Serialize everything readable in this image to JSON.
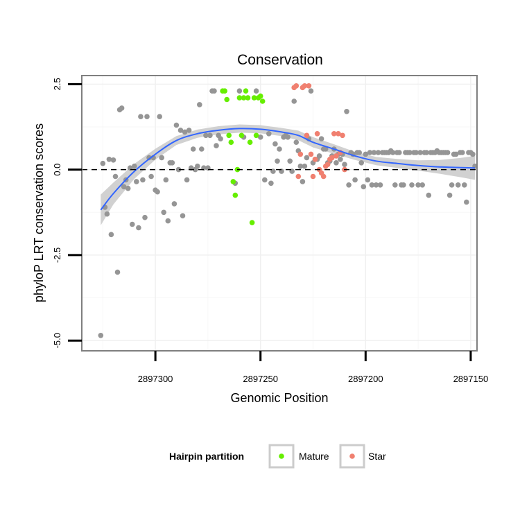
{
  "chart_data": {
    "type": "scatter",
    "title": "Conservation",
    "xlabel": "Genomic Position",
    "ylabel": "phyloP LRT conservation scores",
    "x_reversed": true,
    "xlim": [
      2897335,
      2897147
    ],
    "ylim": [
      -5.3,
      2.75
    ],
    "x_ticks": [
      2897300,
      2897250,
      2897200,
      2897150
    ],
    "x_tick_labels": [
      "2897300",
      "2897250",
      "2897200",
      "2897150"
    ],
    "y_ticks": [
      -5.0,
      -2.5,
      0.0,
      2.5
    ],
    "y_tick_labels": [
      "-5.0",
      "-2.5",
      "0.0",
      "2.5"
    ],
    "reference_line": {
      "y": 0,
      "style": "dashed"
    },
    "legend": {
      "title": "Hairpin partition",
      "position": "bottom",
      "entries": [
        {
          "label": "Mature",
          "color": "#66ee00"
        },
        {
          "label": "Star",
          "color": "#f08070"
        }
      ]
    },
    "colors": {
      "other": "#959595",
      "mature": "#66ee00",
      "star": "#f08070",
      "smooth_line": "#3366ff",
      "ribbon": "#cccccc"
    },
    "series": [
      {
        "name": "Other",
        "points": [
          [
            2897326,
            -4.85
          ],
          [
            2897325,
            0.18
          ],
          [
            2897324,
            -1.1
          ],
          [
            2897323,
            -1.3
          ],
          [
            2897322,
            0.3
          ],
          [
            2897321,
            -1.9
          ],
          [
            2897320,
            0.28
          ],
          [
            2897319,
            -0.2
          ],
          [
            2897318,
            -3.0
          ],
          [
            2897317,
            1.75
          ],
          [
            2897316,
            1.8
          ],
          [
            2897315,
            -0.5
          ],
          [
            2897314,
            -0.3
          ],
          [
            2897313,
            -0.55
          ],
          [
            2897312,
            0.05
          ],
          [
            2897311,
            -1.6
          ],
          [
            2897310,
            0.1
          ],
          [
            2897309,
            -0.35
          ],
          [
            2897308,
            -1.7
          ],
          [
            2897307,
            1.55
          ],
          [
            2897306,
            -0.3
          ],
          [
            2897305,
            -1.4
          ],
          [
            2897304,
            1.55
          ],
          [
            2897303,
            0.35
          ],
          [
            2897302,
            -0.2
          ],
          [
            2897301,
            0.35
          ],
          [
            2897300,
            -0.6
          ],
          [
            2897299,
            -0.65
          ],
          [
            2897298,
            1.55
          ],
          [
            2897297,
            0.35
          ],
          [
            2897296,
            -1.25
          ],
          [
            2897295,
            -0.3
          ],
          [
            2897294,
            -1.5
          ],
          [
            2897293,
            0.2
          ],
          [
            2897292,
            0.2
          ],
          [
            2897291,
            -1.0
          ],
          [
            2897290,
            1.3
          ],
          [
            2897289,
            0.0
          ],
          [
            2897288,
            1.15
          ],
          [
            2897287,
            -1.35
          ],
          [
            2897286,
            1.1
          ],
          [
            2897285,
            -0.3
          ],
          [
            2897284,
            1.15
          ],
          [
            2897283,
            0.05
          ],
          [
            2897282,
            0.6
          ],
          [
            2897281,
            0.0
          ],
          [
            2897280,
            0.1
          ],
          [
            2897279,
            1.9
          ],
          [
            2897278,
            0.6
          ],
          [
            2897277,
            0.05
          ],
          [
            2897276,
            1.0
          ],
          [
            2897275,
            0.05
          ],
          [
            2897274,
            1.0
          ],
          [
            2897273,
            2.3
          ],
          [
            2897272,
            2.3
          ],
          [
            2897271,
            0.7
          ],
          [
            2897270,
            1.0
          ],
          [
            2897269,
            0.9
          ],
          [
            2897262,
            -0.4
          ],
          [
            2897260,
            2.3
          ],
          [
            2897258,
            0.95
          ],
          [
            2897252,
            2.3
          ],
          [
            2897250,
            0.95
          ],
          [
            2897248,
            -0.3
          ],
          [
            2897246,
            1.05
          ],
          [
            2897245,
            -0.4
          ],
          [
            2897244,
            -0.05
          ],
          [
            2897243,
            0.75
          ],
          [
            2897242,
            0.25
          ],
          [
            2897241,
            0.6
          ],
          [
            2897240,
            -0.05
          ],
          [
            2897239,
            0.95
          ],
          [
            2897238,
            1.0
          ],
          [
            2897237,
            0.95
          ],
          [
            2897236,
            0.25
          ],
          [
            2897235,
            -0.05
          ],
          [
            2897234,
            2.0
          ],
          [
            2897233,
            0.8
          ],
          [
            2897232,
            0.55
          ],
          [
            2897231,
            0.1
          ],
          [
            2897230,
            -0.35
          ],
          [
            2897229,
            0.1
          ],
          [
            2897228,
            0.35
          ],
          [
            2897227,
            0.9
          ],
          [
            2897226,
            2.3
          ],
          [
            2897225,
            0.2
          ],
          [
            2897224,
            0.3
          ],
          [
            2897223,
            0.3
          ],
          [
            2897222,
            0.4
          ],
          [
            2897221,
            0.9
          ],
          [
            2897220,
            0.6
          ],
          [
            2897219,
            0.6
          ],
          [
            2897218,
            0.2
          ],
          [
            2897217,
            0.25
          ],
          [
            2897216,
            0.4
          ],
          [
            2897215,
            0.6
          ],
          [
            2897214,
            0.2
          ],
          [
            2897213,
            0.45
          ],
          [
            2897212,
            0.3
          ],
          [
            2897211,
            0.45
          ],
          [
            2897210,
            0.15
          ],
          [
            2897209,
            1.7
          ],
          [
            2897208,
            -0.45
          ],
          [
            2897207,
            0.5
          ],
          [
            2897206,
            0.45
          ],
          [
            2897205,
            -0.3
          ],
          [
            2897204,
            0.5
          ],
          [
            2897203,
            0.5
          ],
          [
            2897202,
            0.2
          ],
          [
            2897201,
            -0.5
          ],
          [
            2897200,
            0.45
          ],
          [
            2897199,
            -0.3
          ],
          [
            2897198,
            0.5
          ],
          [
            2897197,
            -0.45
          ],
          [
            2897196,
            0.5
          ],
          [
            2897195,
            -0.45
          ],
          [
            2897194,
            0.5
          ],
          [
            2897193,
            -0.45
          ],
          [
            2897192,
            0.5
          ],
          [
            2897191,
            0.5
          ],
          [
            2897190,
            0.5
          ],
          [
            2897189,
            0.5
          ],
          [
            2897188,
            0.55
          ],
          [
            2897187,
            0.5
          ],
          [
            2897186,
            -0.45
          ],
          [
            2897185,
            0.5
          ],
          [
            2897184,
            0.5
          ],
          [
            2897183,
            -0.45
          ],
          [
            2897182,
            -0.45
          ],
          [
            2897181,
            0.5
          ],
          [
            2897180,
            0.5
          ],
          [
            2897179,
            0.5
          ],
          [
            2897178,
            -0.45
          ],
          [
            2897177,
            0.5
          ],
          [
            2897176,
            0.5
          ],
          [
            2897175,
            -0.45
          ],
          [
            2897174,
            0.5
          ],
          [
            2897173,
            -0.45
          ],
          [
            2897172,
            0.5
          ],
          [
            2897171,
            0.5
          ],
          [
            2897170,
            -0.75
          ],
          [
            2897169,
            0.5
          ],
          [
            2897168,
            0.5
          ],
          [
            2897167,
            0.5
          ],
          [
            2897166,
            0.55
          ],
          [
            2897165,
            0.5
          ],
          [
            2897164,
            0.5
          ],
          [
            2897163,
            0.5
          ],
          [
            2897162,
            0.5
          ],
          [
            2897161,
            0.5
          ],
          [
            2897160,
            -0.75
          ],
          [
            2897159,
            -0.45
          ],
          [
            2897158,
            0.45
          ],
          [
            2897157,
            0.45
          ],
          [
            2897156,
            -0.45
          ],
          [
            2897155,
            0.5
          ],
          [
            2897154,
            0.5
          ],
          [
            2897153,
            -0.45
          ],
          [
            2897152,
            -0.95
          ],
          [
            2897151,
            0.5
          ],
          [
            2897150,
            0.5
          ],
          [
            2897149,
            0.45
          ],
          [
            2897148,
            0.1
          ]
        ]
      },
      {
        "name": "Mature",
        "points": [
          [
            2897268,
            2.3
          ],
          [
            2897267,
            2.3
          ],
          [
            2897266,
            2.05
          ],
          [
            2897265,
            1.0
          ],
          [
            2897264,
            0.8
          ],
          [
            2897263,
            -0.35
          ],
          [
            2897262,
            -0.75
          ],
          [
            2897261,
            0.0
          ],
          [
            2897260,
            2.1
          ],
          [
            2897259,
            1.0
          ],
          [
            2897258,
            2.1
          ],
          [
            2897257,
            2.3
          ],
          [
            2897256,
            2.1
          ],
          [
            2897255,
            0.8
          ],
          [
            2897254,
            -1.55
          ],
          [
            2897253,
            2.1
          ],
          [
            2897252,
            1.0
          ],
          [
            2897251,
            2.1
          ],
          [
            2897250,
            2.15
          ],
          [
            2897249,
            2.0
          ]
        ]
      },
      {
        "name": "Star",
        "points": [
          [
            2897234,
            2.4
          ],
          [
            2897233,
            2.45
          ],
          [
            2897232,
            -0.2
          ],
          [
            2897231,
            0.45
          ],
          [
            2897230,
            2.4
          ],
          [
            2897229,
            2.45
          ],
          [
            2897228,
            1.0
          ],
          [
            2897227,
            2.45
          ],
          [
            2897226,
            0.45
          ],
          [
            2897225,
            -0.2
          ],
          [
            2897224,
            0.3
          ],
          [
            2897223,
            1.05
          ],
          [
            2897222,
            0.0
          ],
          [
            2897221,
            -0.1
          ],
          [
            2897220,
            -0.2
          ],
          [
            2897219,
            0.1
          ],
          [
            2897218,
            0.15
          ],
          [
            2897217,
            0.3
          ],
          [
            2897216,
            0.35
          ],
          [
            2897215,
            1.05
          ],
          [
            2897214,
            0.4
          ],
          [
            2897213,
            1.05
          ],
          [
            2897212,
            0.5
          ],
          [
            2897211,
            1.0
          ],
          [
            2897210,
            0.0
          ]
        ]
      }
    ],
    "smooth": {
      "method": "loess",
      "points": [
        [
          2897326,
          -1.18
        ],
        [
          2897320,
          -0.7
        ],
        [
          2897310,
          -0.05
        ],
        [
          2897300,
          0.45
        ],
        [
          2897290,
          0.85
        ],
        [
          2897280,
          1.05
        ],
        [
          2897270,
          1.15
        ],
        [
          2897260,
          1.2
        ],
        [
          2897250,
          1.18
        ],
        [
          2897240,
          1.1
        ],
        [
          2897232,
          1.0
        ],
        [
          2897225,
          0.8
        ],
        [
          2897215,
          0.6
        ],
        [
          2897205,
          0.4
        ],
        [
          2897195,
          0.25
        ],
        [
          2897185,
          0.18
        ],
        [
          2897175,
          0.12
        ],
        [
          2897165,
          0.08
        ],
        [
          2897155,
          0.06
        ],
        [
          2897148,
          0.05
        ]
      ],
      "ribbon_half_width": [
        0.45,
        0.32,
        0.22,
        0.16,
        0.13,
        0.12,
        0.12,
        0.12,
        0.12,
        0.12,
        0.14,
        0.15,
        0.14,
        0.12,
        0.12,
        0.13,
        0.15,
        0.2,
        0.28,
        0.35
      ]
    }
  }
}
